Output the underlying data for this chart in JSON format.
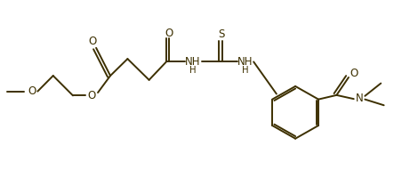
{
  "bg_color": "#ffffff",
  "line_color": "#3d3000",
  "line_width": 1.4,
  "font_size": 8.5,
  "font_color": "#3d3000",
  "figsize": [
    4.61,
    1.91
  ],
  "dpi": 100,
  "xlim": [
    0,
    9.5
  ],
  "ylim": [
    0,
    4.0
  ]
}
